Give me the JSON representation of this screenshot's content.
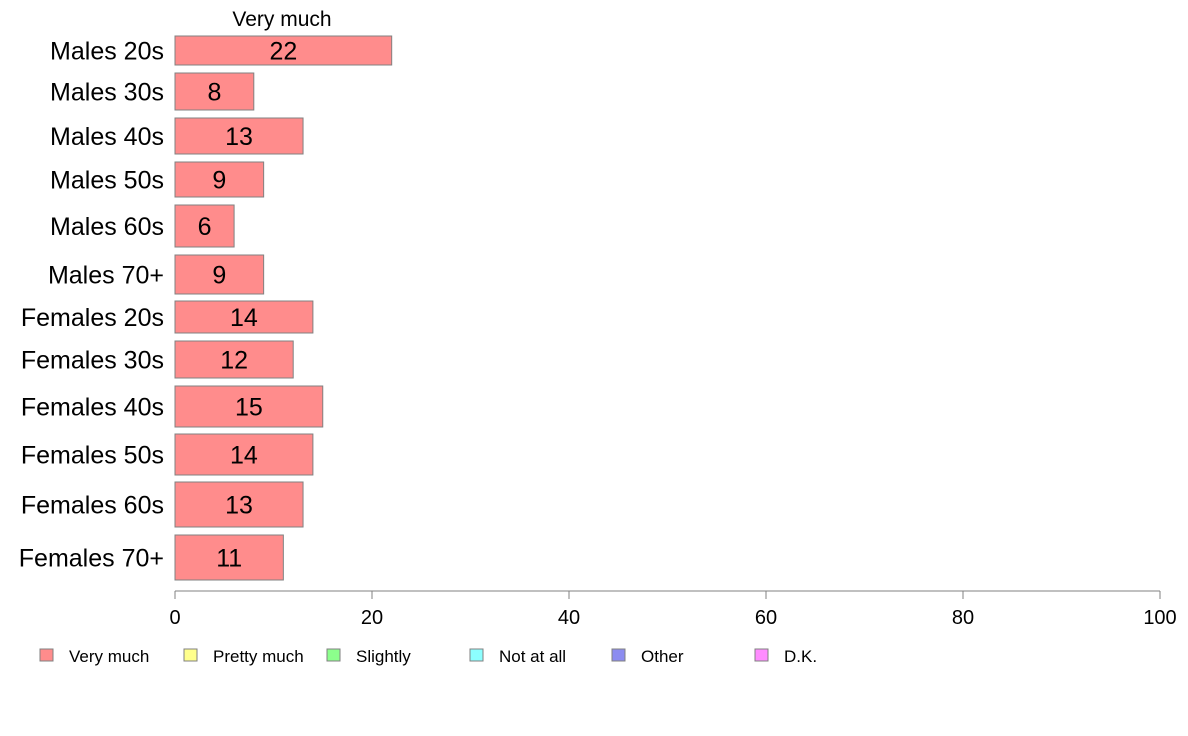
{
  "chart_data": {
    "type": "bar",
    "orientation": "horizontal",
    "stacked": true,
    "series_header": "Very much",
    "categories": [
      "Males 20s",
      "Males 30s",
      "Males 40s",
      "Males 50s",
      "Males 60s",
      "Males 70+",
      "Females 20s",
      "Females 30s",
      "Females 40s",
      "Females 50s",
      "Females 60s",
      "Females 70+"
    ],
    "series": [
      {
        "name": "Very much",
        "values": [
          22,
          8,
          13,
          9,
          6,
          9,
          14,
          12,
          15,
          14,
          13,
          11
        ]
      }
    ],
    "data_labels": [
      "22",
      "8",
      "13",
      "9",
      "6",
      "9",
      "14",
      "12",
      "15",
      "14",
      "13",
      "11"
    ],
    "xlim": [
      0,
      100
    ],
    "x_ticks": [
      0,
      20,
      40,
      60,
      80,
      100
    ],
    "x_tick_labels": [
      "0",
      "20",
      "40",
      "60",
      "80",
      "100"
    ],
    "grid": false,
    "legend_placement": "bottom",
    "legend": [
      {
        "label": "Very much",
        "color": "#ff8c8c"
      },
      {
        "label": "Pretty much",
        "color": "#ffff8c"
      },
      {
        "label": "Slightly",
        "color": "#8cff8c"
      },
      {
        "label": "Not at all",
        "color": "#8cffff"
      },
      {
        "label": "Other",
        "color": "#8c8cf0"
      },
      {
        "label": "D.K.",
        "color": "#ff8cff"
      }
    ],
    "bar_color": "#ff8c8c"
  }
}
